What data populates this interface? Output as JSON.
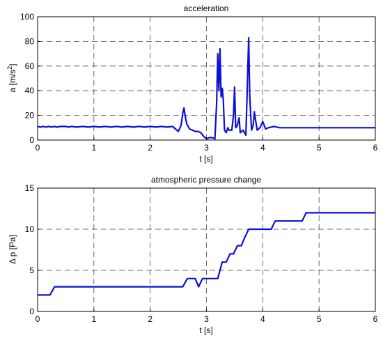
{
  "colors": {
    "line": "#0a10d6",
    "grid": "#444444",
    "axes": "#000000"
  },
  "chart_data": [
    {
      "type": "line",
      "title": "acceleration",
      "xlabel": "t [s]",
      "ylabel_prefix": "a [m/s",
      "ylabel_sup": "2",
      "ylabel_suffix": "]",
      "xlim": [
        0,
        6
      ],
      "ylim": [
        0,
        100
      ],
      "xticks": [
        "0",
        "1",
        "2",
        "3",
        "4",
        "5",
        "6"
      ],
      "yticks": [
        "0",
        "20",
        "40",
        "60",
        "80",
        "100"
      ],
      "grid": true,
      "series": [
        {
          "x": [
            0,
            0.05,
            0.1,
            0.15,
            0.2,
            0.25,
            0.3,
            0.35,
            0.4,
            0.45,
            0.5,
            0.55,
            0.6,
            0.7,
            0.8,
            0.9,
            1.0,
            1.1,
            1.2,
            1.3,
            1.4,
            1.5,
            1.6,
            1.7,
            1.8,
            1.9,
            2.0,
            2.1,
            2.2,
            2.3,
            2.4,
            2.45,
            2.5,
            2.55,
            2.58,
            2.6,
            2.62,
            2.65,
            2.7,
            2.75,
            2.8,
            2.85,
            2.9,
            2.95,
            3.0,
            3.05,
            3.1,
            3.15,
            3.18,
            3.2,
            3.22,
            3.24,
            3.26,
            3.28,
            3.3,
            3.32,
            3.35,
            3.38,
            3.4,
            3.45,
            3.48,
            3.5,
            3.52,
            3.55,
            3.58,
            3.6,
            3.65,
            3.7,
            3.73,
            3.75,
            3.77,
            3.8,
            3.83,
            3.85,
            3.88,
            3.9,
            3.95,
            4.0,
            4.05,
            4.1,
            4.2,
            4.3,
            4.4,
            4.6,
            4.8,
            5.0,
            5.2,
            5.4,
            5.6,
            5.8,
            6.0
          ],
          "y": [
            11,
            10.5,
            11,
            10.5,
            11,
            10.5,
            11,
            10.5,
            11,
            11,
            11,
            10.5,
            11,
            10.5,
            11,
            10.5,
            11,
            10.5,
            11,
            10.5,
            11,
            10.5,
            11,
            10.5,
            11,
            10.5,
            11,
            10.5,
            11,
            10.5,
            11,
            9,
            7,
            12,
            22,
            26,
            20,
            13,
            9,
            8,
            7,
            7,
            6,
            3,
            1,
            2,
            2,
            1,
            30,
            70,
            40,
            74,
            35,
            42,
            32,
            8,
            6,
            10,
            8,
            8,
            20,
            43,
            10,
            12,
            18,
            6,
            8,
            4,
            50,
            83,
            35,
            8,
            12,
            23,
            14,
            8,
            10,
            15,
            9,
            10,
            11,
            10,
            10,
            10,
            10,
            10,
            10,
            10,
            10,
            10,
            10
          ]
        }
      ]
    },
    {
      "type": "line",
      "title": "atmospheric pressure change",
      "xlabel": "t [s]",
      "ylabel": "Δ p [Pa]",
      "xlim": [
        0,
        6
      ],
      "ylim": [
        0,
        15
      ],
      "xticks": [
        "0",
        "1",
        "2",
        "3",
        "4",
        "5",
        "6"
      ],
      "yticks": [
        "0",
        "5",
        "10",
        "15"
      ],
      "grid": true,
      "series": [
        {
          "x": [
            0,
            0.22,
            0.3,
            2.58,
            2.66,
            2.8,
            2.86,
            2.93,
            3.0,
            3.2,
            3.28,
            3.35,
            3.42,
            3.48,
            3.55,
            3.62,
            3.68,
            3.75,
            3.83,
            4.15,
            4.22,
            4.7,
            4.77,
            6.0
          ],
          "y": [
            2,
            2,
            3,
            3,
            4,
            4,
            3,
            4,
            4,
            4,
            6,
            6,
            7,
            7,
            8,
            8,
            9,
            10,
            10,
            10,
            11,
            11,
            12,
            12
          ]
        }
      ]
    }
  ]
}
